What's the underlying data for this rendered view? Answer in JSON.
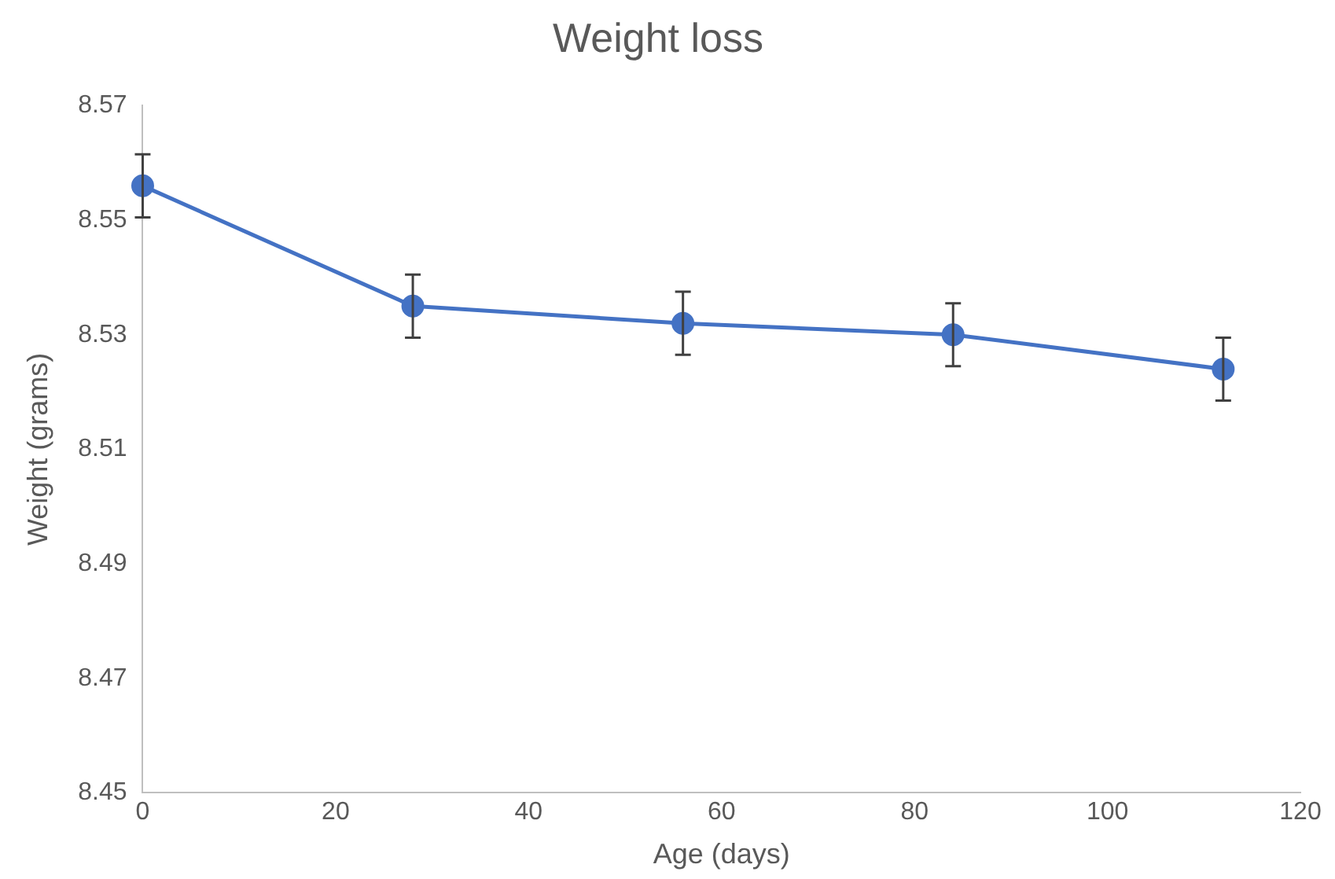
{
  "chart_data": {
    "type": "line",
    "title": "Weight loss",
    "xlabel": "Age (days)",
    "ylabel": "Weight (grams)",
    "x": [
      0,
      28,
      56,
      84,
      112
    ],
    "series": [
      {
        "color": "#4472c4",
        "values": [
          8.556,
          8.535,
          8.532,
          8.53,
          8.524
        ],
        "errors": [
          0.0055,
          0.0055,
          0.0055,
          0.0055,
          0.0055
        ]
      }
    ],
    "xlim": [
      0,
      120
    ],
    "xticks": [
      0,
      20,
      40,
      60,
      80,
      100,
      120
    ],
    "ylim": [
      8.45,
      8.57
    ],
    "yticks": [
      8.45,
      8.47,
      8.49,
      8.51,
      8.53,
      8.55,
      8.57
    ],
    "grid": false,
    "legend": false,
    "marker": "circle",
    "line_style": "solid"
  }
}
